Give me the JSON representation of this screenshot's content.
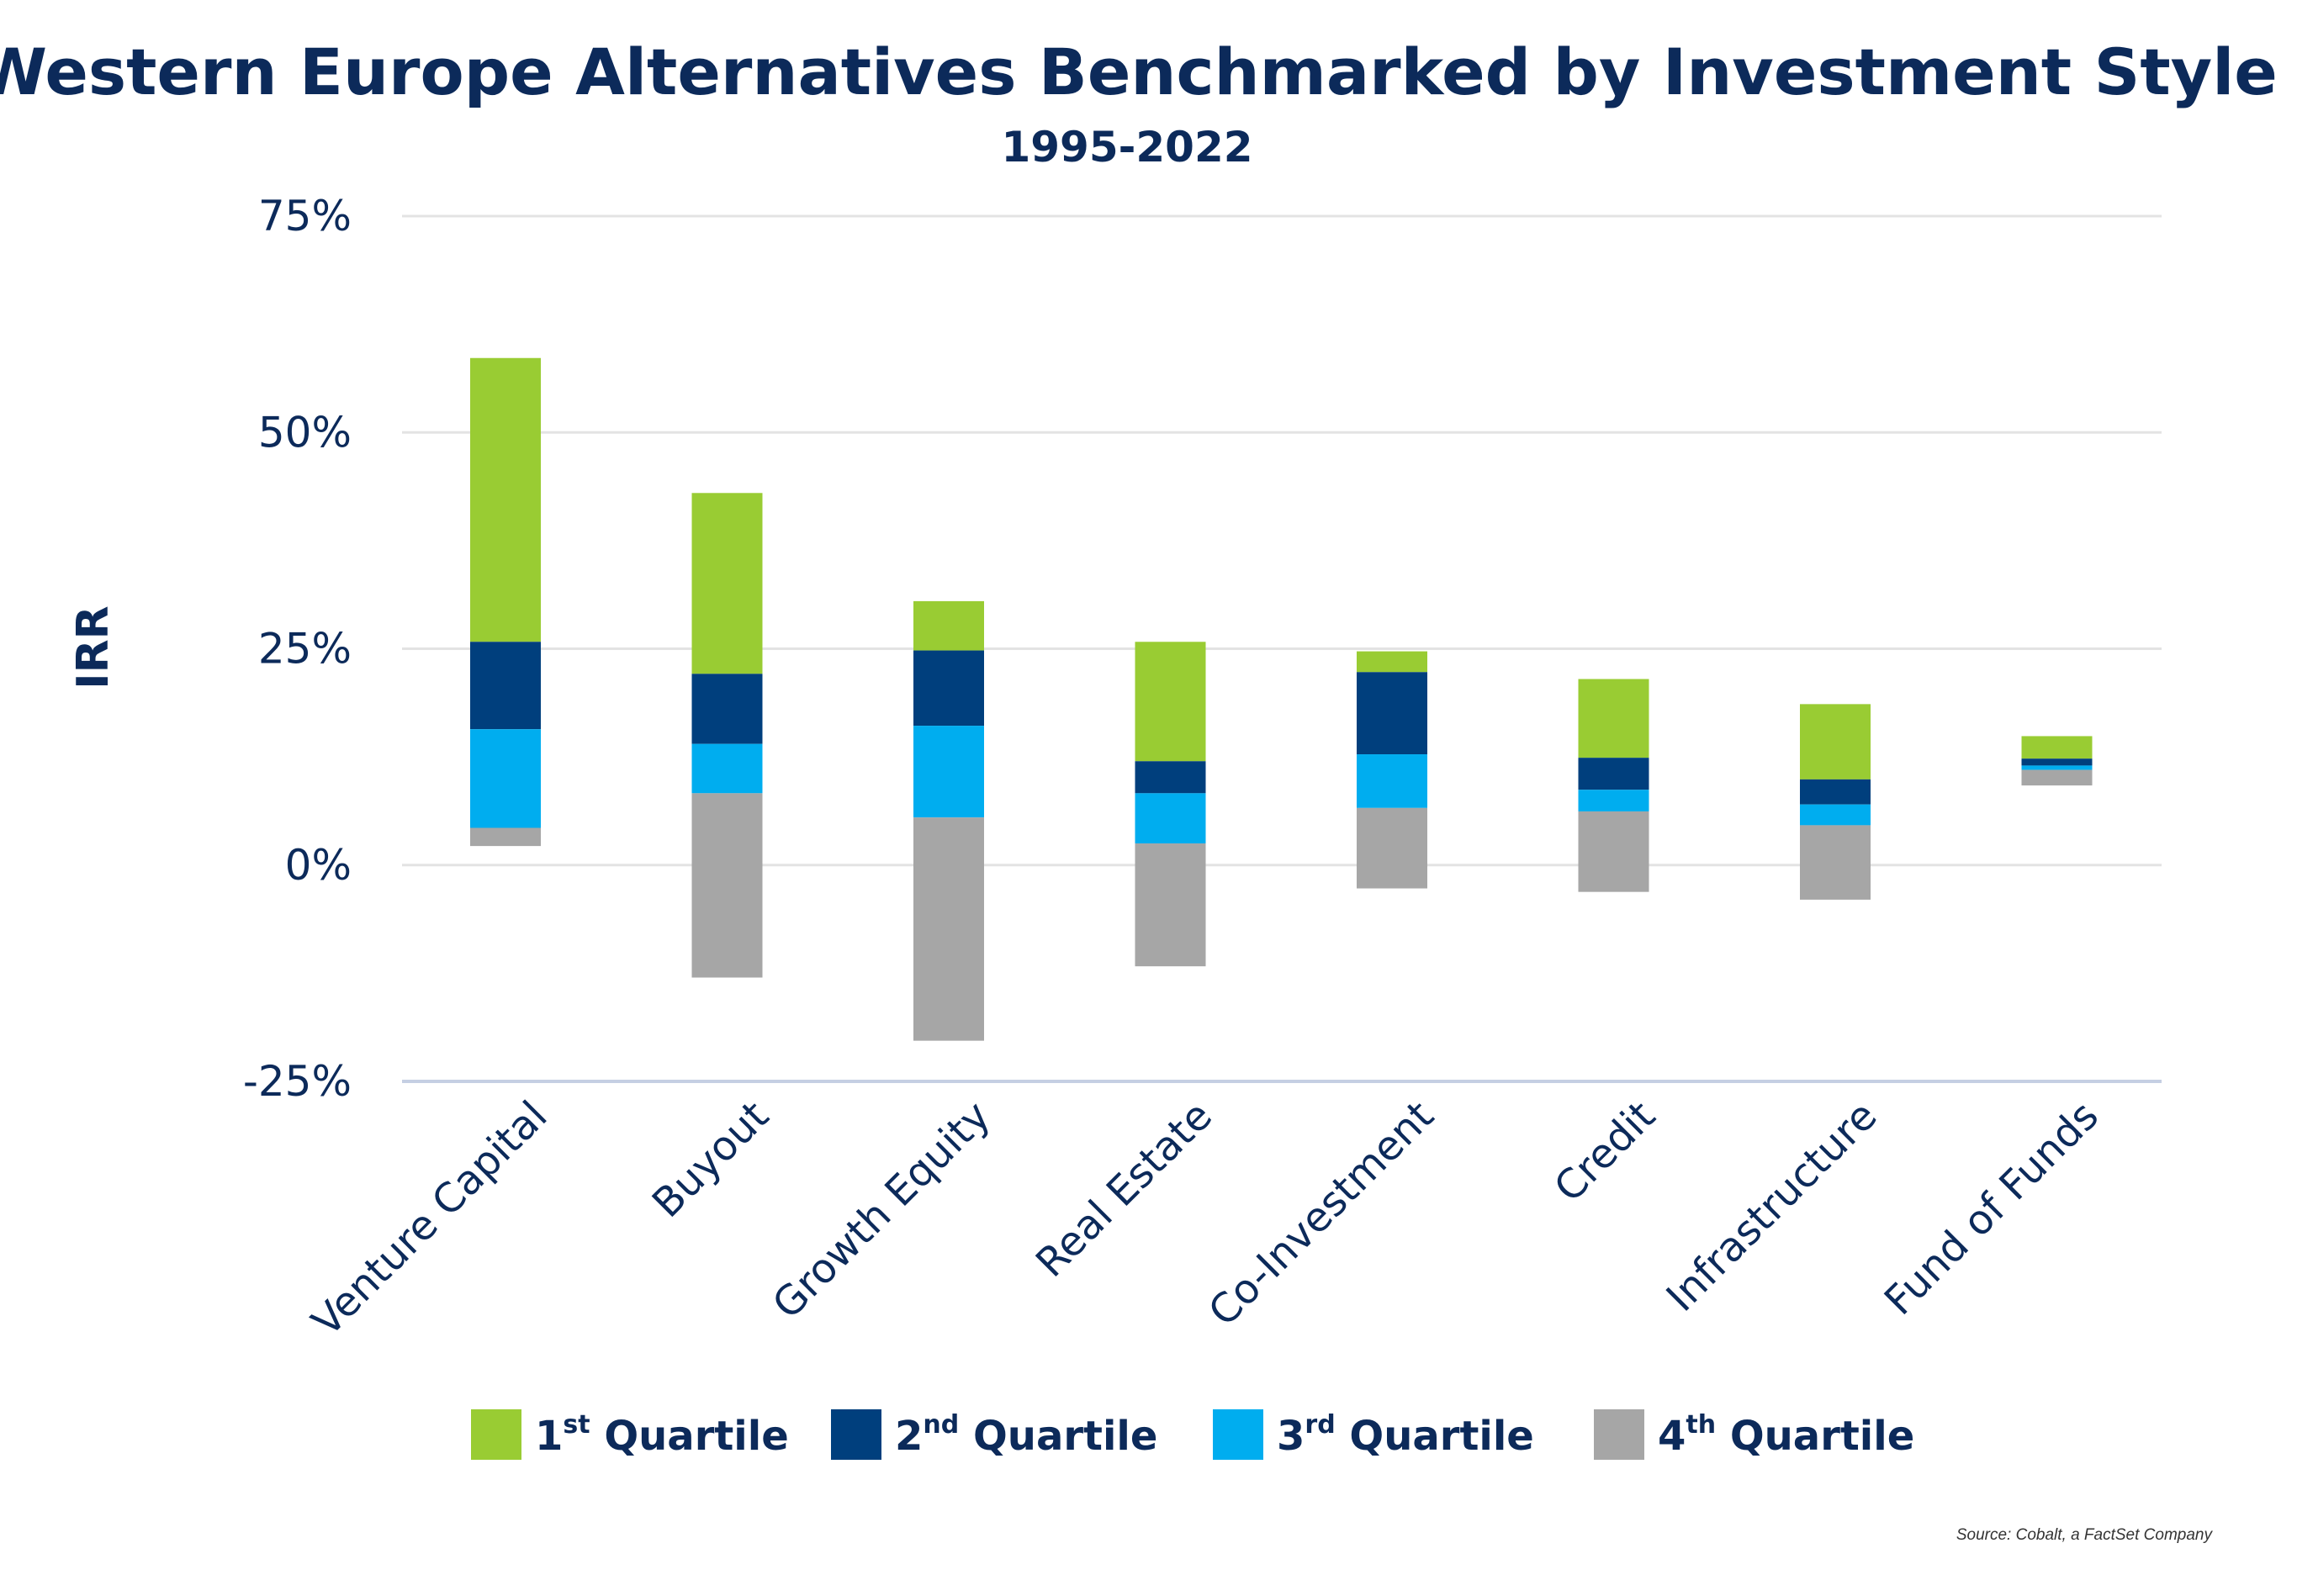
{
  "chart_data": {
    "type": "bar",
    "title": "Western Europe Alternatives Benchmarked by Investment Style",
    "subtitle": "1995-2022",
    "ylabel": "IRR",
    "xlabel": "",
    "ylim": [
      -25,
      75
    ],
    "yticks": [
      {
        "value": 75,
        "label": "75%"
      },
      {
        "value": 50,
        "label": "50%"
      },
      {
        "value": 25,
        "label": "25%"
      },
      {
        "value": 0,
        "label": "0%"
      },
      {
        "value": -25,
        "label": "-25%"
      }
    ],
    "grid": true,
    "legend_position": "bottom",
    "categories": [
      "Venture Capital",
      "Buyout",
      "Growth Equity",
      "Real Estate",
      "Co-Investment",
      "Credit",
      "Infrastructure",
      "Fund of Funds"
    ],
    "series": [
      {
        "name": "1st Quartile",
        "ord": "1",
        "sup": "st",
        "color": "#99cc33",
        "ranges": [
          [
            25.8,
            58.6
          ],
          [
            22.1,
            43.0
          ],
          [
            24.8,
            30.5
          ],
          [
            12.0,
            25.8
          ],
          [
            22.3,
            24.7
          ],
          [
            12.4,
            21.5
          ],
          [
            9.9,
            18.6
          ],
          [
            12.3,
            14.9
          ]
        ]
      },
      {
        "name": "2nd Quartile",
        "ord": "2",
        "sup": "nd",
        "color": "#003f7d",
        "ranges": [
          [
            15.7,
            25.8
          ],
          [
            14.0,
            22.1
          ],
          [
            16.1,
            24.8
          ],
          [
            8.3,
            12.0
          ],
          [
            12.8,
            22.3
          ],
          [
            8.7,
            12.4
          ],
          [
            7.0,
            9.9
          ],
          [
            11.5,
            12.3
          ]
        ]
      },
      {
        "name": "3rd Quartile",
        "ord": "3",
        "sup": "rd",
        "color": "#00adef",
        "ranges": [
          [
            4.3,
            15.7
          ],
          [
            8.3,
            14.0
          ],
          [
            5.5,
            16.1
          ],
          [
            2.5,
            8.3
          ],
          [
            6.6,
            12.8
          ],
          [
            6.2,
            8.7
          ],
          [
            4.6,
            7.0
          ],
          [
            11.0,
            11.5
          ]
        ]
      },
      {
        "name": "4th Quartile",
        "ord": "4",
        "sup": "th",
        "color": "#a6a6a6",
        "ranges": [
          [
            2.2,
            4.3
          ],
          [
            -13.0,
            8.3
          ],
          [
            -20.3,
            5.5
          ],
          [
            -11.7,
            2.5
          ],
          [
            -2.7,
            6.6
          ],
          [
            -3.1,
            6.2
          ],
          [
            -4.0,
            4.6
          ],
          [
            9.2,
            11.0
          ]
        ]
      }
    ],
    "source": "Source: Cobalt, a FactSet Company"
  }
}
